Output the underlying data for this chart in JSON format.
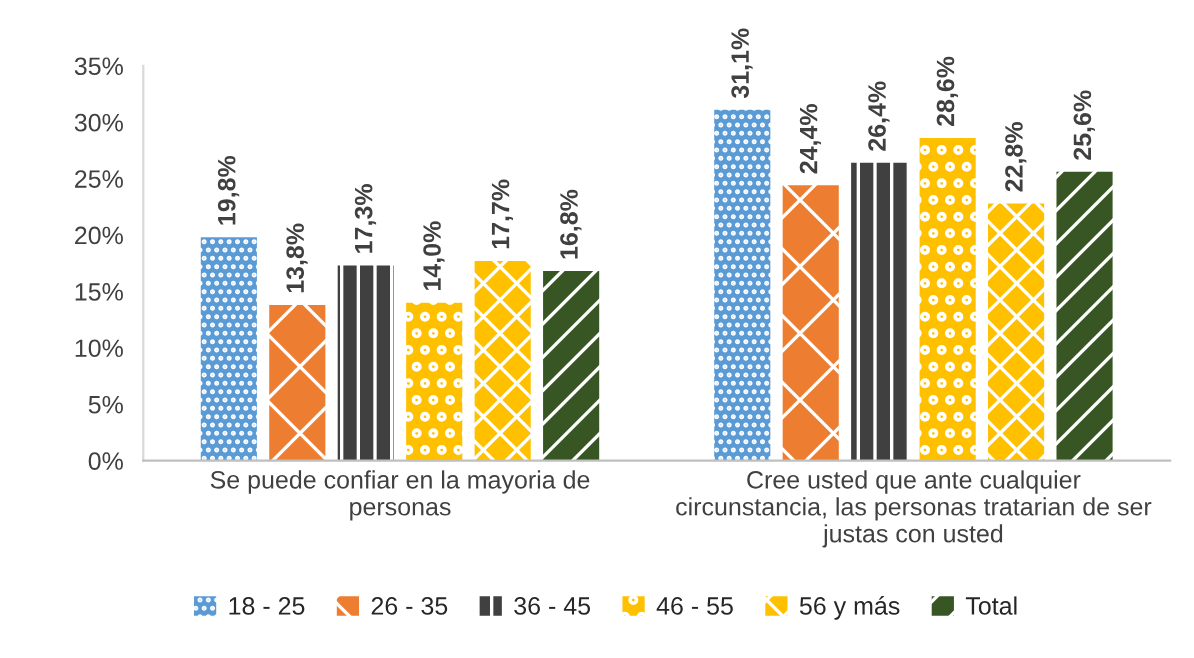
{
  "chart_data": {
    "type": "bar",
    "categories": [
      "Se puede confiar en la mayoria de\npersonas",
      "Cree usted que ante cualquier\ncircunstancia, las personas tratarian de ser\njustas con usted"
    ],
    "series": [
      {
        "name": "18 - 25",
        "color": "#5b9bd5",
        "values": [
          19.8,
          31.1
        ],
        "value_labels": [
          "19,8%",
          "31,1%"
        ]
      },
      {
        "name": "26 - 35",
        "color": "#ed7d31",
        "values": [
          13.8,
          24.4
        ],
        "value_labels": [
          "13,8%",
          "24,4%"
        ]
      },
      {
        "name": "36 - 45",
        "color": "#404040",
        "values": [
          17.3,
          26.4
        ],
        "value_labels": [
          "17,3%",
          "26,4%"
        ]
      },
      {
        "name": "46 - 55",
        "color": "#ffc000",
        "values": [
          14.0,
          28.6
        ],
        "value_labels": [
          "14,0%",
          "28,6%"
        ]
      },
      {
        "name": "56 y más",
        "color": "#ffc000",
        "values": [
          17.7,
          22.8
        ],
        "value_labels": [
          "17,7%",
          "22,8%"
        ]
      },
      {
        "name": "Total",
        "color": "#375623",
        "values": [
          16.8,
          25.6
        ],
        "value_labels": [
          "16,8%",
          "25,6%"
        ]
      }
    ],
    "ylim": [
      0,
      35
    ],
    "yticks": [
      {
        "value": 0,
        "label": "0%"
      },
      {
        "value": 5,
        "label": "5%"
      },
      {
        "value": 10,
        "label": "10%"
      },
      {
        "value": 15,
        "label": "15%"
      },
      {
        "value": 20,
        "label": "20%"
      },
      {
        "value": 25,
        "label": "25%"
      },
      {
        "value": 30,
        "label": "30%"
      },
      {
        "value": 35,
        "label": "35%"
      }
    ],
    "grid": false,
    "legend": "bottom"
  }
}
